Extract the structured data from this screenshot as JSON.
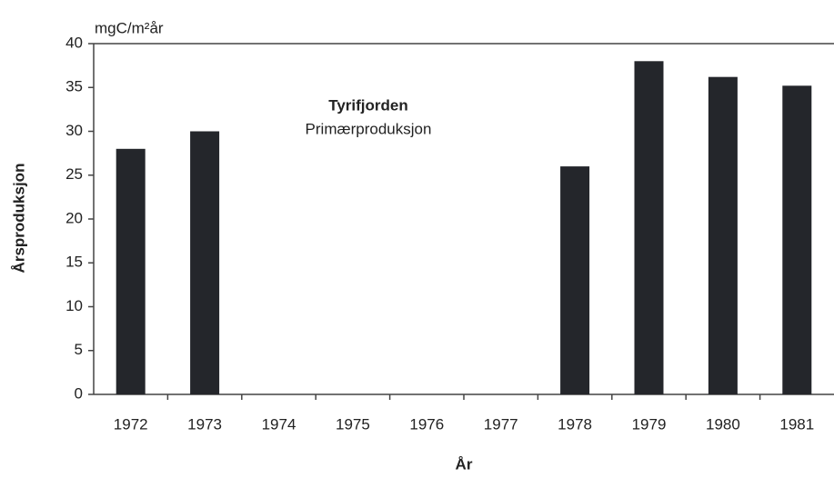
{
  "chart_data": {
    "type": "bar",
    "title": "Tyrifjorden",
    "subtitle": "Primærproduksjon",
    "unit_label": "mgC/m²år",
    "y_label": "Årsproduksjon",
    "x_label": "År",
    "categories": [
      "1972",
      "1973",
      "1974",
      "1975",
      "1976",
      "1977",
      "1978",
      "1979",
      "1980",
      "1981"
    ],
    "values": [
      28,
      30,
      null,
      null,
      null,
      null,
      26,
      38,
      36.2,
      35.2
    ],
    "color": "#24262b",
    "ylim": [
      0,
      40
    ],
    "yticks": [
      0,
      5,
      10,
      15,
      20,
      25,
      30,
      35,
      40
    ],
    "grid": false
  }
}
